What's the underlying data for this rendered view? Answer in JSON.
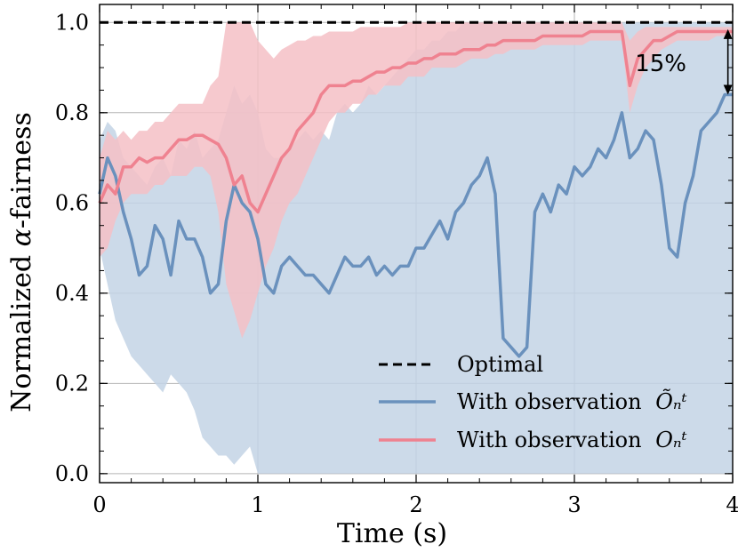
{
  "chart_data": {
    "type": "line",
    "title": "",
    "xlabel": "Time (s)",
    "ylabel_prefix": "Normalized ",
    "ylabel_symbol": "α",
    "ylabel_suffix": "-fairness",
    "xlim": [
      0,
      4
    ],
    "ylim": [
      -0.02,
      1.04
    ],
    "xticks": [
      {
        "value": 0,
        "label": "0"
      },
      {
        "value": 1,
        "label": "1"
      },
      {
        "value": 2,
        "label": "2"
      },
      {
        "value": 3,
        "label": "3"
      },
      {
        "value": 4,
        "label": "4"
      }
    ],
    "yticks": [
      {
        "value": 0.0,
        "label": "0.0"
      },
      {
        "value": 0.2,
        "label": "0.2"
      },
      {
        "value": 0.4,
        "label": "0.4"
      },
      {
        "value": 0.6,
        "label": "0.6"
      },
      {
        "value": 0.8,
        "label": "0.8"
      },
      {
        "value": 1.0,
        "label": "1.0"
      }
    ],
    "grid": true,
    "legend_position": "lower-right",
    "legend": [
      {
        "label": "Optimal",
        "symbol": "",
        "style": "dashed"
      },
      {
        "label": "With observation ",
        "symbol": "Õₙᵗ",
        "style": "blue"
      },
      {
        "label": "With observation ",
        "symbol": "Oₙᵗ",
        "style": "red"
      }
    ],
    "annotation": {
      "text": "15%",
      "x": 3.97,
      "y_from": 0.985,
      "y_to": 0.84
    },
    "colors": {
      "optimal": "#000000",
      "blue": "#6a91bd",
      "red": "#ef8290",
      "blue_band": "#c3d3e5",
      "red_band": "#f5c0c6"
    },
    "series": [
      {
        "name": "Optimal",
        "style": "dashed",
        "x": [
          0,
          4
        ],
        "y": [
          1.0,
          1.0
        ]
      },
      {
        "name": "With observation Õₙᵗ",
        "style": "blue",
        "x": [
          0,
          0.05,
          0.1,
          0.15,
          0.2,
          0.25,
          0.3,
          0.35,
          0.4,
          0.45,
          0.5,
          0.55,
          0.6,
          0.65,
          0.7,
          0.75,
          0.8,
          0.85,
          0.9,
          0.95,
          1.0,
          1.05,
          1.1,
          1.15,
          1.2,
          1.25,
          1.3,
          1.35,
          1.4,
          1.45,
          1.5,
          1.55,
          1.6,
          1.65,
          1.7,
          1.75,
          1.8,
          1.85,
          1.9,
          1.95,
          2.0,
          2.05,
          2.1,
          2.15,
          2.2,
          2.25,
          2.3,
          2.35,
          2.4,
          2.45,
          2.5,
          2.55,
          2.6,
          2.65,
          2.7,
          2.75,
          2.8,
          2.85,
          2.9,
          2.95,
          3.0,
          3.05,
          3.1,
          3.15,
          3.2,
          3.25,
          3.3,
          3.35,
          3.4,
          3.45,
          3.5,
          3.55,
          3.6,
          3.65,
          3.7,
          3.75,
          3.8,
          3.85,
          3.9,
          3.95,
          4.0
        ],
        "y": [
          0.62,
          0.7,
          0.66,
          0.58,
          0.52,
          0.44,
          0.46,
          0.55,
          0.52,
          0.44,
          0.56,
          0.52,
          0.52,
          0.48,
          0.4,
          0.42,
          0.56,
          0.64,
          0.6,
          0.58,
          0.52,
          0.42,
          0.4,
          0.46,
          0.48,
          0.46,
          0.44,
          0.44,
          0.42,
          0.4,
          0.44,
          0.48,
          0.46,
          0.46,
          0.48,
          0.44,
          0.46,
          0.44,
          0.46,
          0.46,
          0.5,
          0.5,
          0.53,
          0.56,
          0.52,
          0.58,
          0.6,
          0.64,
          0.66,
          0.7,
          0.62,
          0.3,
          0.28,
          0.26,
          0.28,
          0.58,
          0.62,
          0.58,
          0.64,
          0.62,
          0.68,
          0.66,
          0.68,
          0.72,
          0.7,
          0.74,
          0.8,
          0.7,
          0.72,
          0.76,
          0.74,
          0.64,
          0.5,
          0.48,
          0.6,
          0.66,
          0.76,
          0.78,
          0.8,
          0.84,
          0.84
        ],
        "band_low": [
          0.5,
          0.42,
          0.34,
          0.3,
          0.26,
          0.24,
          0.22,
          0.2,
          0.18,
          0.22,
          0.2,
          0.18,
          0.14,
          0.08,
          0.06,
          0.04,
          0.04,
          0.02,
          0.04,
          0.06,
          0.0,
          0.0,
          0.0,
          0.0,
          0.0,
          0.0,
          0.0,
          0.0,
          0.0,
          0.0,
          0.0,
          0.0,
          0.0,
          0.0,
          0.0,
          0.0,
          0.0,
          0.0,
          0.0,
          0.0,
          0.0,
          0.0,
          0.0,
          0.0,
          0.0,
          0.0,
          0.0,
          0.0,
          0.0,
          0.0,
          0.0,
          0.0,
          0.0,
          0.0,
          0.0,
          0.0,
          0.0,
          0.0,
          0.0,
          0.0,
          0.0,
          0.0,
          0.0,
          0.0,
          0.0,
          0.0,
          0.0,
          0.0,
          0.0,
          0.0,
          0.0,
          0.0,
          0.0,
          0.0,
          0.0,
          0.0,
          0.0,
          0.0,
          0.0,
          0.0,
          0.0
        ],
        "band_high": [
          0.74,
          0.78,
          0.76,
          0.7,
          0.68,
          0.66,
          0.64,
          0.68,
          0.7,
          0.66,
          0.74,
          0.72,
          0.76,
          0.7,
          0.72,
          0.74,
          0.8,
          0.86,
          0.82,
          0.84,
          0.8,
          0.72,
          0.7,
          0.7,
          0.72,
          0.74,
          0.76,
          0.74,
          0.76,
          0.74,
          0.8,
          0.82,
          0.8,
          0.82,
          0.86,
          0.84,
          0.86,
          0.88,
          0.9,
          0.92,
          0.94,
          0.94,
          0.96,
          0.96,
          0.98,
          0.98,
          1.0,
          1.0,
          1.0,
          1.0,
          1.0,
          1.0,
          1.0,
          1.0,
          1.0,
          1.0,
          1.0,
          1.0,
          1.0,
          1.0,
          1.0,
          1.0,
          1.0,
          1.0,
          1.0,
          1.0,
          1.0,
          1.0,
          1.0,
          1.0,
          1.0,
          1.0,
          1.0,
          1.0,
          1.0,
          1.0,
          1.0,
          1.0,
          1.0,
          1.0,
          1.0
        ]
      },
      {
        "name": "With observation Oₙᵗ",
        "style": "red",
        "x": [
          0,
          0.05,
          0.1,
          0.15,
          0.2,
          0.25,
          0.3,
          0.35,
          0.4,
          0.45,
          0.5,
          0.55,
          0.6,
          0.65,
          0.7,
          0.75,
          0.8,
          0.85,
          0.9,
          0.95,
          1.0,
          1.05,
          1.1,
          1.15,
          1.2,
          1.25,
          1.3,
          1.35,
          1.4,
          1.45,
          1.5,
          1.55,
          1.6,
          1.65,
          1.7,
          1.75,
          1.8,
          1.85,
          1.9,
          1.95,
          2.0,
          2.05,
          2.1,
          2.15,
          2.2,
          2.25,
          2.3,
          2.35,
          2.4,
          2.45,
          2.5,
          2.55,
          2.6,
          2.65,
          2.7,
          2.75,
          2.8,
          2.85,
          2.9,
          2.95,
          3.0,
          3.05,
          3.1,
          3.15,
          3.2,
          3.25,
          3.3,
          3.35,
          3.4,
          3.45,
          3.5,
          3.55,
          3.6,
          3.65,
          3.7,
          3.75,
          3.8,
          3.85,
          3.9,
          3.95,
          4.0
        ],
        "y": [
          0.6,
          0.64,
          0.62,
          0.68,
          0.68,
          0.7,
          0.69,
          0.7,
          0.7,
          0.72,
          0.74,
          0.74,
          0.75,
          0.75,
          0.74,
          0.73,
          0.7,
          0.64,
          0.66,
          0.6,
          0.58,
          0.62,
          0.66,
          0.7,
          0.72,
          0.76,
          0.78,
          0.8,
          0.84,
          0.86,
          0.86,
          0.86,
          0.87,
          0.87,
          0.88,
          0.89,
          0.89,
          0.9,
          0.9,
          0.91,
          0.91,
          0.92,
          0.92,
          0.93,
          0.93,
          0.93,
          0.94,
          0.94,
          0.94,
          0.95,
          0.95,
          0.96,
          0.96,
          0.96,
          0.96,
          0.96,
          0.97,
          0.97,
          0.97,
          0.97,
          0.97,
          0.97,
          0.98,
          0.98,
          0.98,
          0.98,
          0.98,
          0.86,
          0.92,
          0.94,
          0.96,
          0.96,
          0.97,
          0.98,
          0.98,
          0.98,
          0.98,
          0.98,
          0.98,
          0.98,
          0.98
        ],
        "band_low": [
          0.48,
          0.5,
          0.56,
          0.6,
          0.62,
          0.62,
          0.62,
          0.64,
          0.64,
          0.66,
          0.66,
          0.66,
          0.68,
          0.68,
          0.66,
          0.58,
          0.42,
          0.36,
          0.3,
          0.34,
          0.4,
          0.46,
          0.5,
          0.56,
          0.6,
          0.62,
          0.66,
          0.7,
          0.74,
          0.78,
          0.8,
          0.8,
          0.82,
          0.82,
          0.84,
          0.84,
          0.86,
          0.86,
          0.86,
          0.88,
          0.88,
          0.88,
          0.9,
          0.9,
          0.9,
          0.9,
          0.91,
          0.92,
          0.92,
          0.92,
          0.93,
          0.93,
          0.94,
          0.94,
          0.94,
          0.94,
          0.95,
          0.95,
          0.95,
          0.95,
          0.95,
          0.95,
          0.96,
          0.96,
          0.96,
          0.96,
          0.96,
          0.8,
          0.86,
          0.9,
          0.92,
          0.94,
          0.95,
          0.96,
          0.96,
          0.96,
          0.96,
          0.96,
          0.97,
          0.97,
          0.97
        ],
        "band_high": [
          0.7,
          0.76,
          0.74,
          0.76,
          0.74,
          0.76,
          0.76,
          0.78,
          0.78,
          0.8,
          0.82,
          0.82,
          0.82,
          0.82,
          0.86,
          0.88,
          1.0,
          1.0,
          1.0,
          1.0,
          0.96,
          0.94,
          0.92,
          0.94,
          0.95,
          0.96,
          0.96,
          0.97,
          0.97,
          0.98,
          0.98,
          0.98,
          0.98,
          0.99,
          0.99,
          0.99,
          0.99,
          0.99,
          0.99,
          1.0,
          1.0,
          1.0,
          1.0,
          1.0,
          1.0,
          1.0,
          1.0,
          1.0,
          1.0,
          1.0,
          1.0,
          1.0,
          1.0,
          1.0,
          1.0,
          1.0,
          1.0,
          1.0,
          1.0,
          1.0,
          1.0,
          1.0,
          1.0,
          1.0,
          1.0,
          1.0,
          1.0,
          0.96,
          0.98,
          0.99,
          0.99,
          0.99,
          0.99,
          0.99,
          0.99,
          0.99,
          0.99,
          0.99,
          0.99,
          0.99,
          0.99
        ]
      }
    ]
  }
}
